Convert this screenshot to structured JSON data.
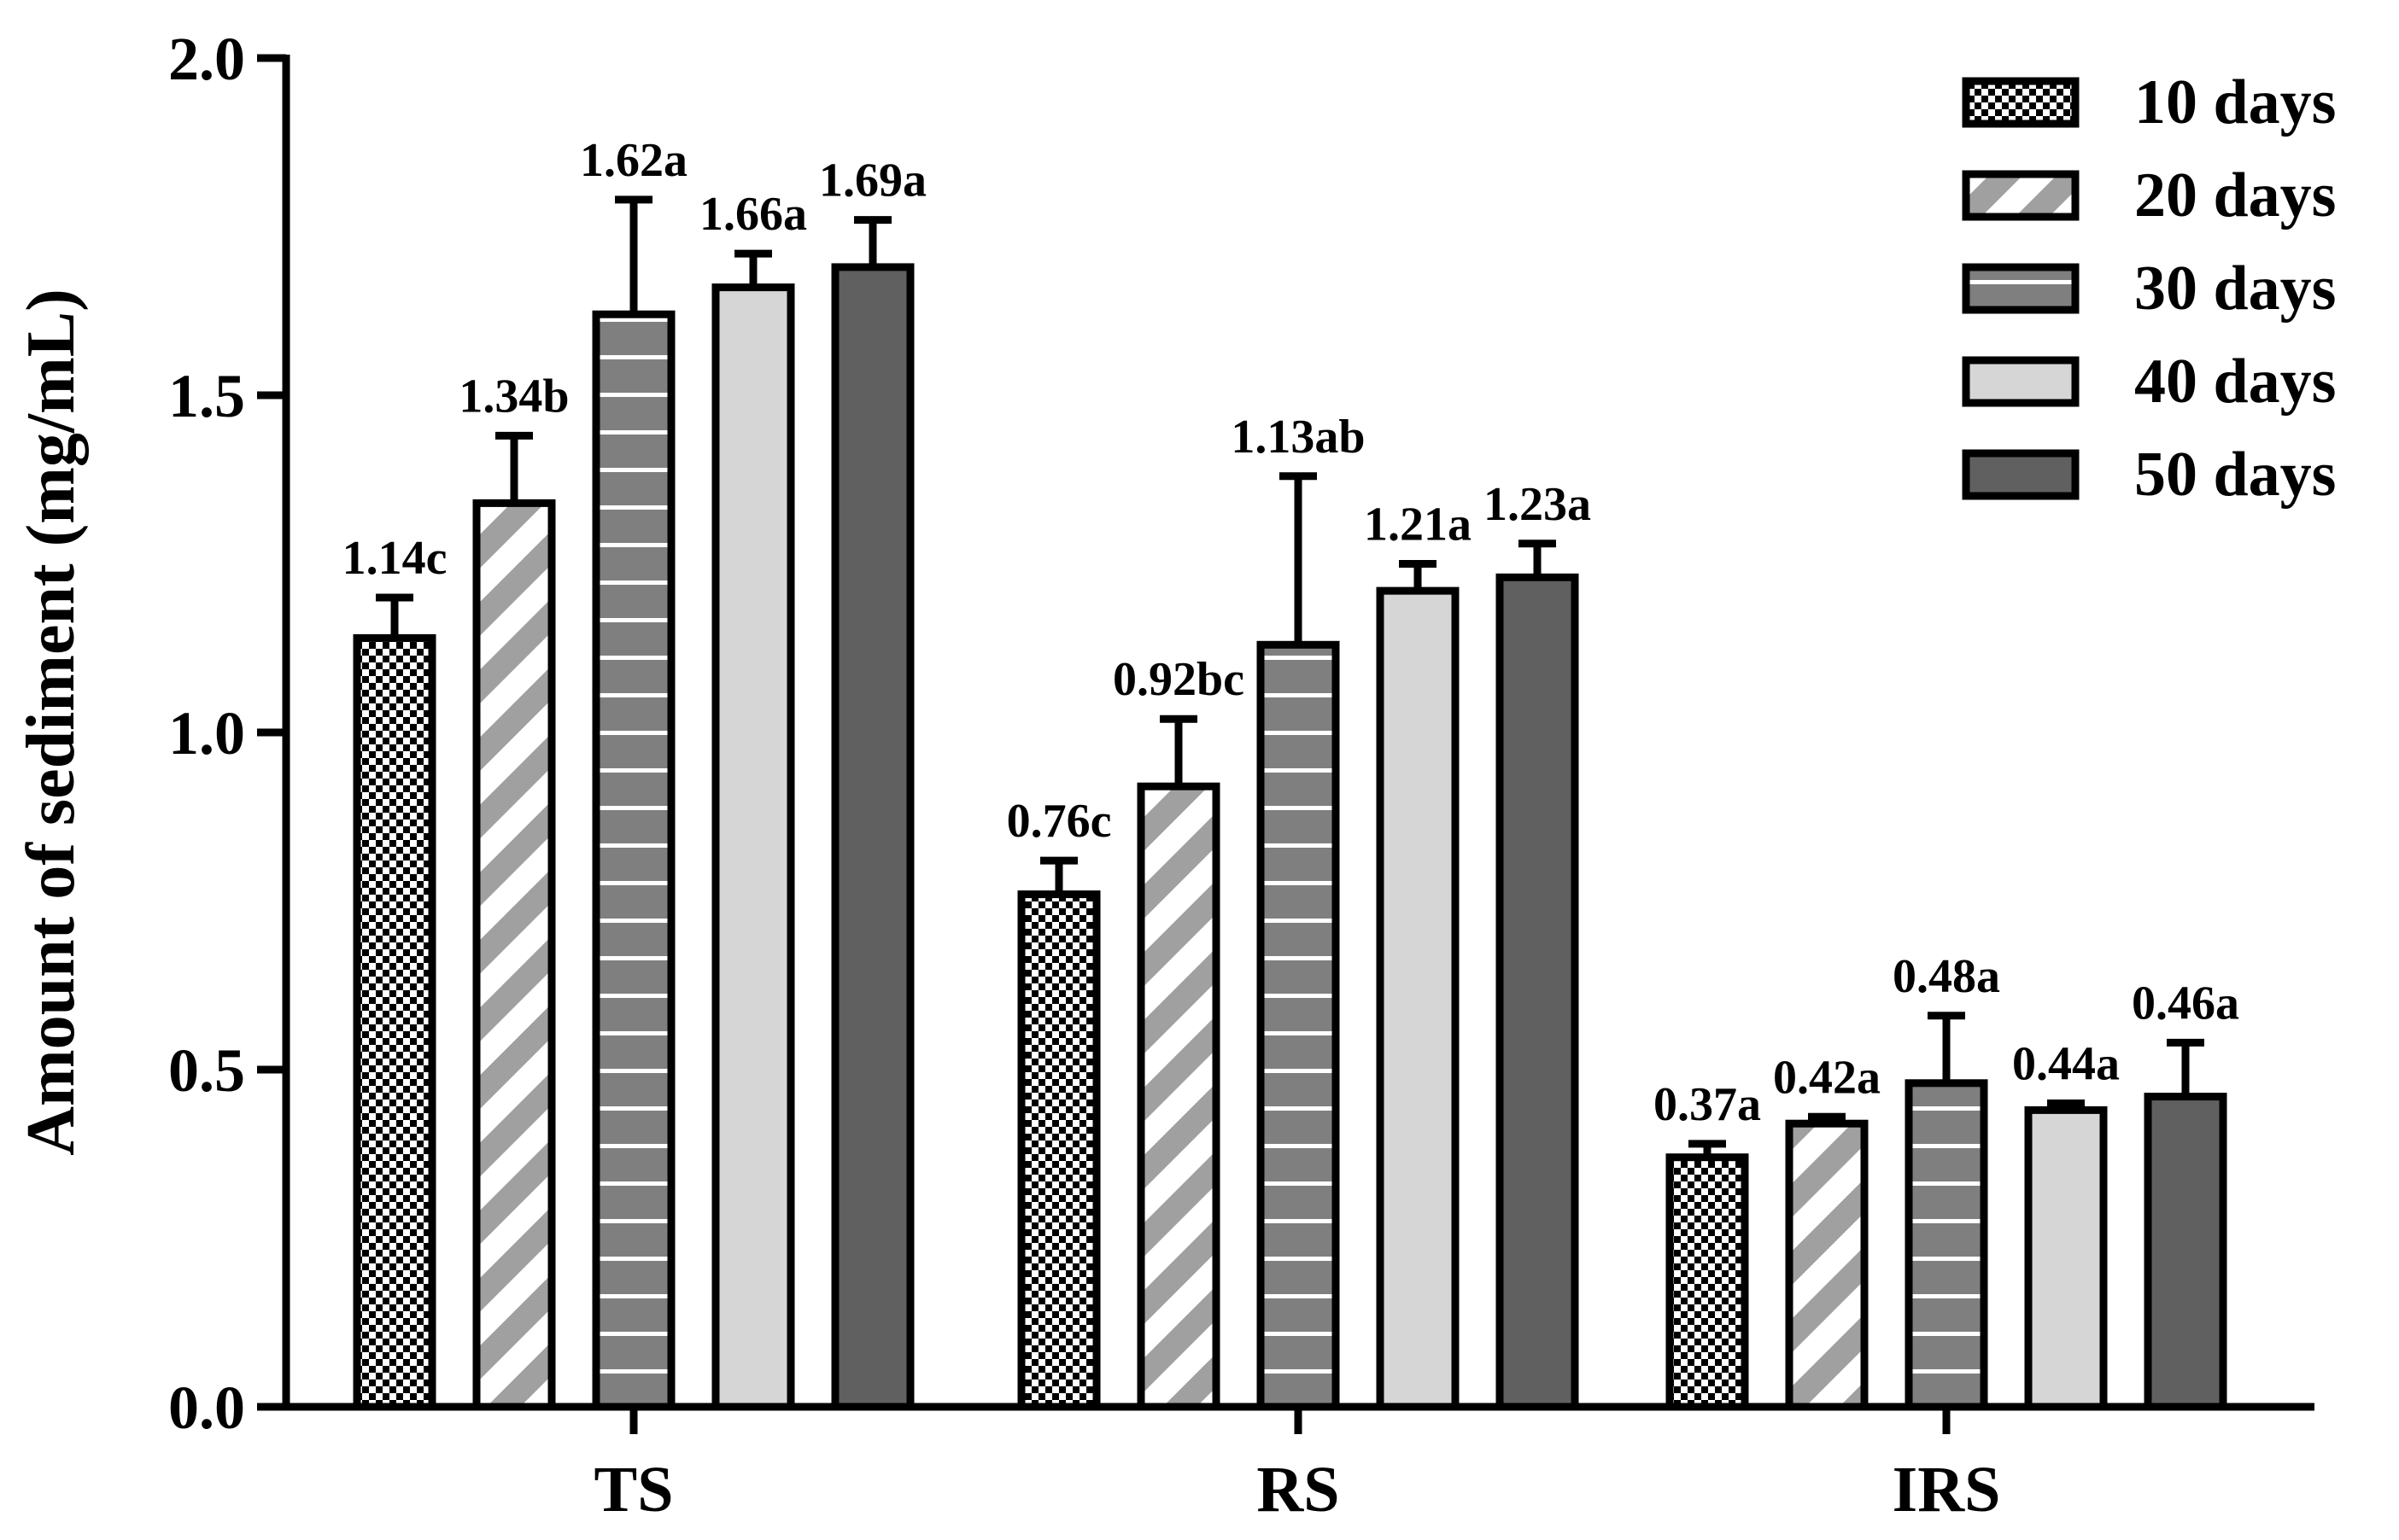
{
  "chart_data": {
    "type": "bar",
    "title": "",
    "xlabel": "",
    "ylabel": "Amount of sediment (mg/mL)",
    "ylim": [
      0,
      2.0
    ],
    "yticks": [
      "0.0",
      "0.5",
      "1.0",
      "1.5",
      "2.0"
    ],
    "ytick_values": [
      0,
      0.5,
      1.0,
      1.5,
      2.0
    ],
    "grid": false,
    "legend_position": "top-right",
    "categories": [
      "TS",
      "RS",
      "IRS"
    ],
    "series": [
      {
        "name": "10 days",
        "pattern": "checker",
        "values": [
          1.14,
          0.76,
          0.37
        ],
        "errors": [
          0.06,
          0.05,
          0.02
        ],
        "labels": [
          "1.14c",
          "0.76c",
          "0.37a"
        ]
      },
      {
        "name": "20 days",
        "pattern": "diagonal",
        "values": [
          1.34,
          0.92,
          0.42
        ],
        "errors": [
          0.1,
          0.1,
          0.01
        ],
        "labels": [
          "1.34b",
          "0.92bc",
          "0.42a"
        ]
      },
      {
        "name": "30 days",
        "pattern": "horizontal",
        "values": [
          1.62,
          1.13,
          0.48
        ],
        "errors": [
          0.17,
          0.25,
          0.1
        ],
        "labels": [
          "1.62a",
          "1.13ab",
          "0.48a"
        ]
      },
      {
        "name": "40 days",
        "pattern": "light",
        "values": [
          1.66,
          1.21,
          0.44
        ],
        "errors": [
          0.05,
          0.04,
          0.01
        ],
        "labels": [
          "1.66a",
          "1.21a",
          "0.44a"
        ]
      },
      {
        "name": "50 days",
        "pattern": "dark",
        "values": [
          1.69,
          1.23,
          0.46
        ],
        "errors": [
          0.07,
          0.05,
          0.08
        ],
        "labels": [
          "1.69a",
          "1.23a",
          "0.46a"
        ]
      }
    ],
    "colors": {
      "axis": "#000000",
      "bar_stroke": "#000000",
      "diagonal_stripe": "#a0a0a0",
      "horizontal_fill": "#7f7f7f",
      "light_fill": "#d6d6d6",
      "dark_fill": "#606060",
      "checker_dark": "#000000",
      "checker_light": "#ffffff"
    }
  }
}
